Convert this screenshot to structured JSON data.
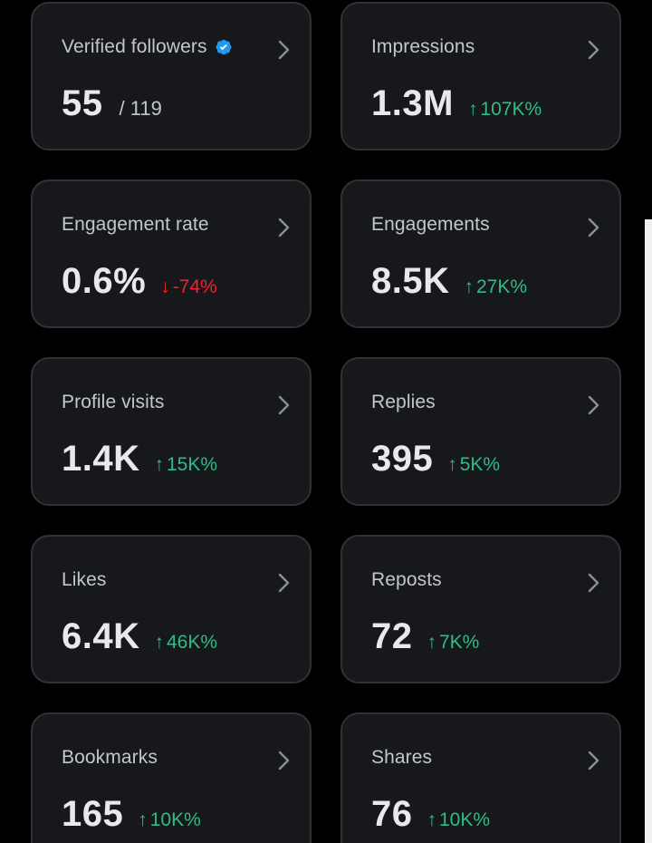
{
  "cards": [
    {
      "label": "Verified followers",
      "value": "55",
      "sub": "/ 119",
      "verified": true
    },
    {
      "label": "Impressions",
      "value": "1.3M",
      "delta": "107K%",
      "direction": "up"
    },
    {
      "label": "Engagement rate",
      "value": "0.6%",
      "delta": "-74%",
      "direction": "down"
    },
    {
      "label": "Engagements",
      "value": "8.5K",
      "delta": "27K%",
      "direction": "up"
    },
    {
      "label": "Profile visits",
      "value": "1.4K",
      "delta": "15K%",
      "direction": "up"
    },
    {
      "label": "Replies",
      "value": "395",
      "delta": "5K%",
      "direction": "up"
    },
    {
      "label": "Likes",
      "value": "6.4K",
      "delta": "46K%",
      "direction": "up"
    },
    {
      "label": "Reposts",
      "value": "72",
      "delta": "7K%",
      "direction": "up"
    },
    {
      "label": "Bookmarks",
      "value": "165",
      "delta": "10K%",
      "direction": "up"
    },
    {
      "label": "Shares",
      "value": "76",
      "delta": "10K%",
      "direction": "up"
    }
  ],
  "arrows": {
    "up": "↑",
    "down": "↓"
  },
  "icons": {
    "chevron": "chevron-right-icon",
    "verified": "verified-badge-icon"
  },
  "colors": {
    "up": "#2ebd85",
    "down": "#f4212e",
    "verified": "#1d9bf0",
    "card_bg": "#16181c",
    "card_border": "#2f3336"
  }
}
